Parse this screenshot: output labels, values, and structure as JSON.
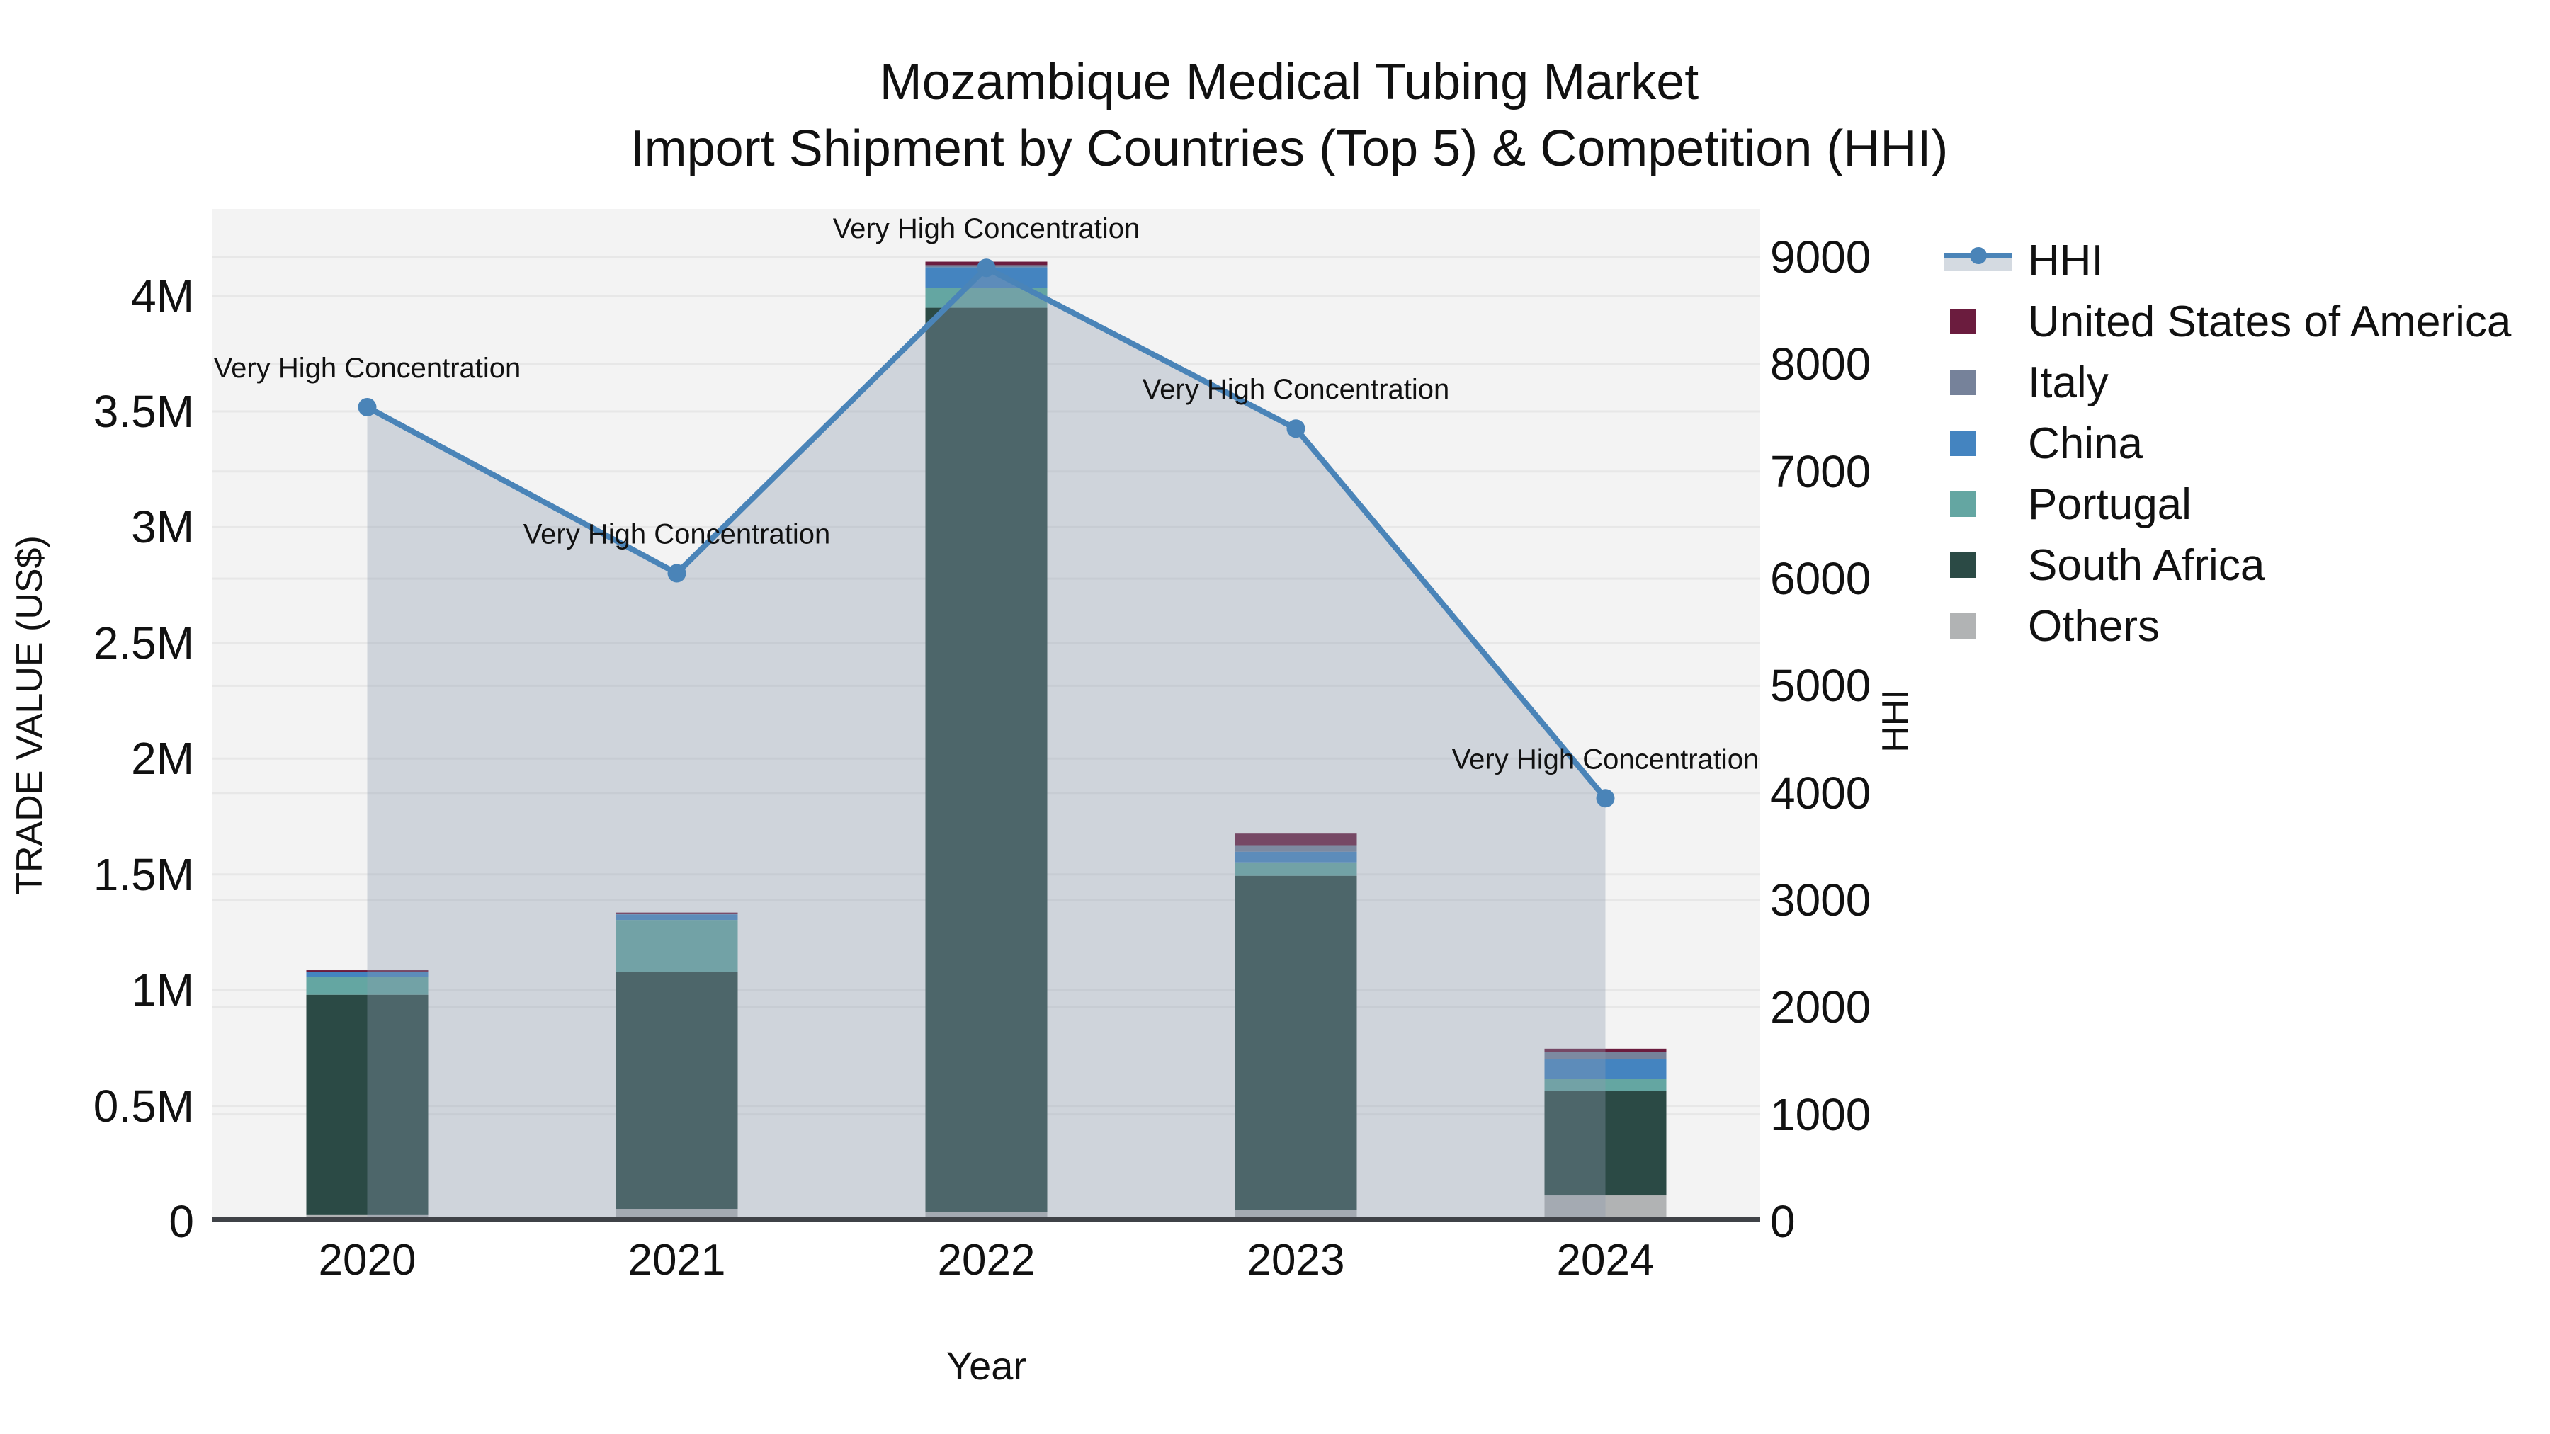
{
  "title": {
    "line1": "Mozambique Medical Tubing Market",
    "line2": "Import Shipment by Countries (Top 5) & Competition (HHI)"
  },
  "axes": {
    "y_left": {
      "label": "TRADE VALUE (US$)",
      "ticks": [
        "0",
        "0.5M",
        "1M",
        "1.5M",
        "2M",
        "2.5M",
        "3M",
        "3.5M",
        "4M"
      ],
      "tick_values": [
        0,
        500000,
        1000000,
        1500000,
        2000000,
        2500000,
        3000000,
        3500000,
        4000000
      ]
    },
    "y_right": {
      "label": "HHI",
      "ticks": [
        "0",
        "1000",
        "2000",
        "3000",
        "4000",
        "5000",
        "6000",
        "7000",
        "8000",
        "9000"
      ],
      "tick_values": [
        0,
        1000,
        2000,
        3000,
        4000,
        5000,
        6000,
        7000,
        8000,
        9000
      ]
    },
    "x": {
      "label": "Year"
    }
  },
  "chart_data": {
    "type": "bar+line",
    "categories": [
      "2020",
      "2021",
      "2022",
      "2023",
      "2024"
    ],
    "stack_order": "bottom-to-top",
    "left_axis_max": 4375000,
    "right_axis_max": 9450,
    "grid": true,
    "legend_position": "right",
    "series": [
      {
        "name": "Others",
        "color": "#b1b3b4",
        "values": [
          28000,
          55000,
          40000,
          52000,
          113000
        ]
      },
      {
        "name": "South Africa",
        "color": "#2b4a45",
        "values": [
          952000,
          1022000,
          3908000,
          1442000,
          450000
        ]
      },
      {
        "name": "Portugal",
        "color": "#64a6a2",
        "values": [
          77000,
          226000,
          86000,
          58000,
          55000
        ]
      },
      {
        "name": "China",
        "color": "#4484c0",
        "values": [
          21000,
          24000,
          89000,
          46000,
          83000
        ]
      },
      {
        "name": "Italy",
        "color": "#76829a",
        "values": [
          0,
          4000,
          9000,
          28000,
          31000
        ]
      },
      {
        "name": "United States of America",
        "color": "#6b1c3e",
        "values": [
          8000,
          4000,
          15000,
          50000,
          15000
        ]
      }
    ],
    "line": {
      "name": "HHI",
      "color": "#4a84b8",
      "area_color": "#8c9baf",
      "area_opacity": 0.35,
      "values": [
        7600,
        6050,
        8900,
        7400,
        3950
      ]
    },
    "annotations": [
      "Very High Concentration",
      "Very High Concentration",
      "Very High Concentration",
      "Very High Concentration",
      "Very High Concentration"
    ],
    "title": "Mozambique Medical Tubing Market Import Shipment by Countries (Top 5) & Competition (HHI)",
    "xlabel": "Year",
    "ylabel": "TRADE VALUE (US$)",
    "ylabel_right": "HHI"
  },
  "legend": {
    "items": [
      {
        "label": "HHI",
        "type": "line",
        "color": "#4a84b8",
        "band_color": "#d4dae1"
      },
      {
        "label": "United States of America",
        "type": "square",
        "color": "#6b1c3e"
      },
      {
        "label": "Italy",
        "type": "square",
        "color": "#76829a"
      },
      {
        "label": "China",
        "type": "square",
        "color": "#4484c0"
      },
      {
        "label": "Portugal",
        "type": "square",
        "color": "#64a6a2"
      },
      {
        "label": "South Africa",
        "type": "square",
        "color": "#2b4a45"
      },
      {
        "label": "Others",
        "type": "square",
        "color": "#b1b3b4"
      }
    ]
  },
  "colors": {
    "plot_grid": "#e7e7e7",
    "axis_line": "#3f4247",
    "text": "#111111"
  }
}
